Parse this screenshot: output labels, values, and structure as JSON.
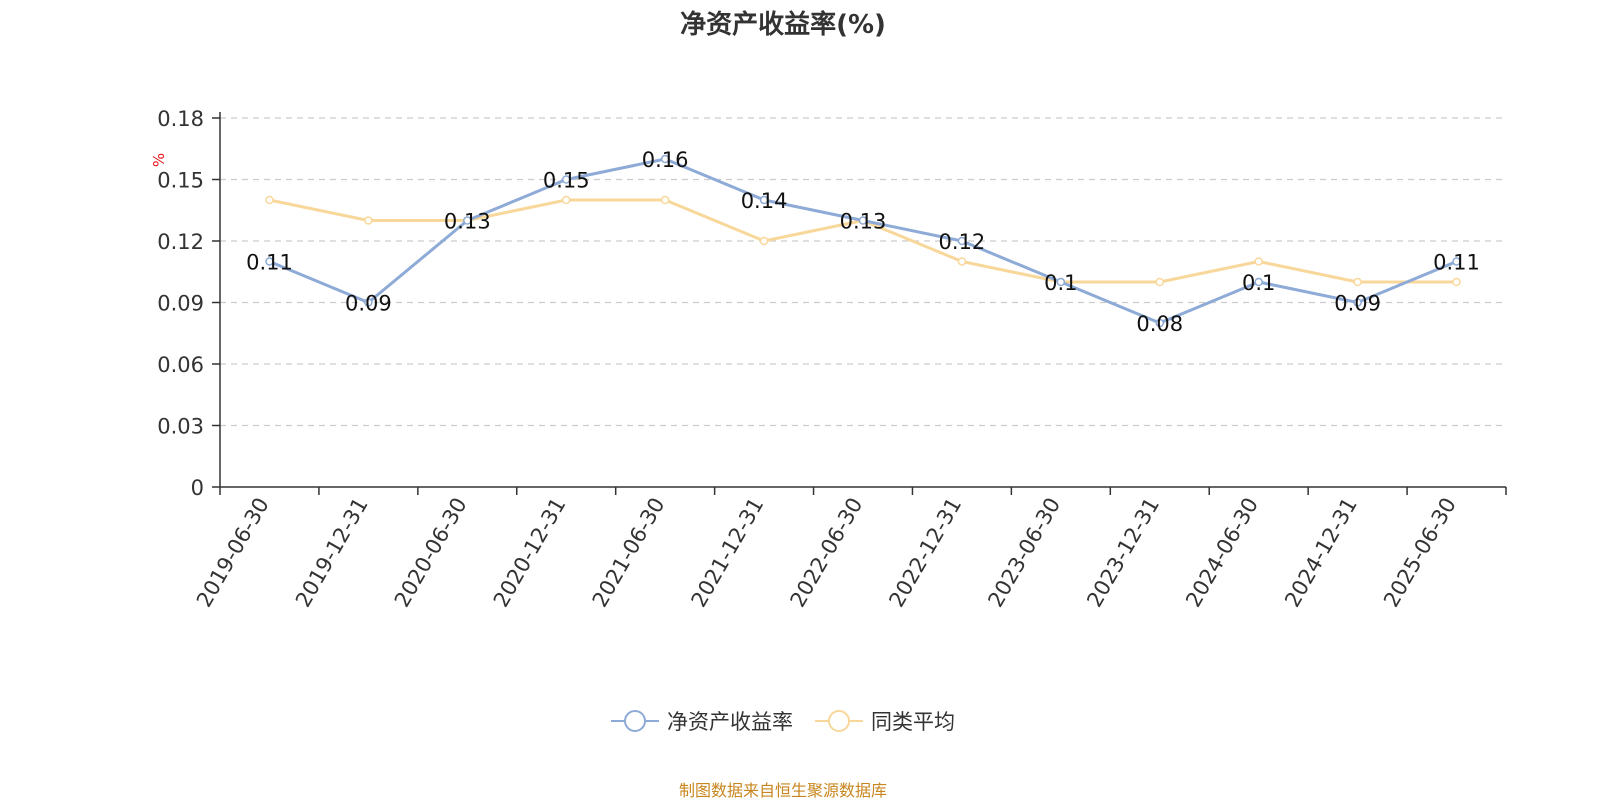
{
  "colors": {
    "series_1": "#8eaad6",
    "series_2": "#f8d79a",
    "axis": "#333333",
    "grid": "#cccccc",
    "unit": "#e8141b",
    "source": "#c8861e"
  },
  "chart_data": {
    "type": "line",
    "title": "净资产收益率(%)",
    "ylabel": "%",
    "ylim": [
      0,
      0.18
    ],
    "yticks": [
      "0",
      "0.03",
      "0.06",
      "0.09",
      "0.12",
      "0.15",
      "0.18"
    ],
    "grid": true,
    "legend_position": "bottom-center",
    "categories": [
      "2019-06-30",
      "2019-12-31",
      "2020-06-30",
      "2020-12-31",
      "2021-06-30",
      "2021-12-31",
      "2022-06-30",
      "2022-12-31",
      "2023-06-30",
      "2023-12-31",
      "2024-06-30",
      "2024-12-31",
      "2025-06-30"
    ],
    "series": [
      {
        "name": "净资产收益率",
        "values": [
          0.11,
          0.09,
          0.13,
          0.15,
          0.16,
          0.14,
          0.13,
          0.12,
          0.1,
          0.08,
          0.1,
          0.09,
          0.11
        ],
        "labels": [
          "0.11",
          "0.09",
          "0.13",
          "0.15",
          "0.16",
          "0.14",
          "0.13",
          "0.12",
          "0.1",
          "0.08",
          "0.1",
          "0.09",
          "0.11"
        ]
      },
      {
        "name": "同类平均",
        "values": [
          0.14,
          0.13,
          0.13,
          0.14,
          0.14,
          0.12,
          0.13,
          0.11,
          0.1,
          0.1,
          0.11,
          0.1,
          0.1
        ]
      }
    ]
  },
  "legend": {
    "items": [
      "净资产收益率",
      "同类平均"
    ]
  },
  "footer": {
    "source": "制图数据来自恒生聚源数据库"
  }
}
